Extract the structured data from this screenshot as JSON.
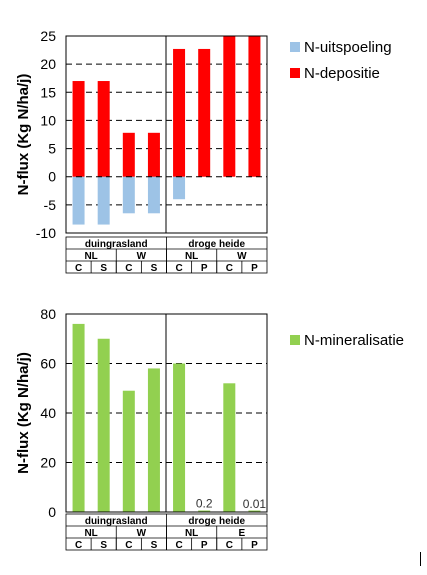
{
  "chart_data": [
    {
      "type": "bar",
      "stacked": true,
      "ylabel": "N-flux (Kg N/ha/j)",
      "ylim": [
        -10,
        25
      ],
      "yticks": [
        -10,
        -5,
        0,
        5,
        10,
        15,
        20,
        25
      ],
      "grid": true,
      "legend_position": "right",
      "categories": [
        "C",
        "S",
        "C",
        "S",
        "C",
        "P",
        "C",
        "P"
      ],
      "group_labels_level2": [
        "NL",
        "W",
        "NL",
        "W"
      ],
      "group_labels_level1": [
        "duingrasland",
        "droge heide"
      ],
      "series": [
        {
          "name": "N-uitspoeling",
          "color": "#9dc3e6",
          "values": [
            -8.5,
            -8.5,
            -6.5,
            -6.5,
            -4,
            0,
            0,
            0
          ]
        },
        {
          "name": "N-depositie",
          "color": "#ff0000",
          "values": [
            17,
            17,
            7.8,
            7.8,
            22.7,
            22.7,
            25,
            25
          ]
        }
      ]
    },
    {
      "type": "bar",
      "ylabel": "N-flux (Kg N/ha/j)",
      "ylim": [
        0,
        80
      ],
      "yticks": [
        0,
        20,
        40,
        60,
        80
      ],
      "grid": true,
      "legend_position": "right",
      "categories": [
        "C",
        "S",
        "C",
        "S",
        "C",
        "P",
        "C",
        "P"
      ],
      "group_labels_level2": [
        "NL",
        "W",
        "NL",
        "E"
      ],
      "group_labels_level1": [
        "duingrasland",
        "droge heide"
      ],
      "series": [
        {
          "name": "N-mineralisatie",
          "color": "#92d050",
          "values": [
            76,
            70,
            49,
            58,
            60,
            0.2,
            52,
            0.01
          ]
        }
      ],
      "data_labels": [
        {
          "index": 5,
          "text": "0.2"
        },
        {
          "index": 7,
          "text": "0.01"
        }
      ]
    }
  ]
}
